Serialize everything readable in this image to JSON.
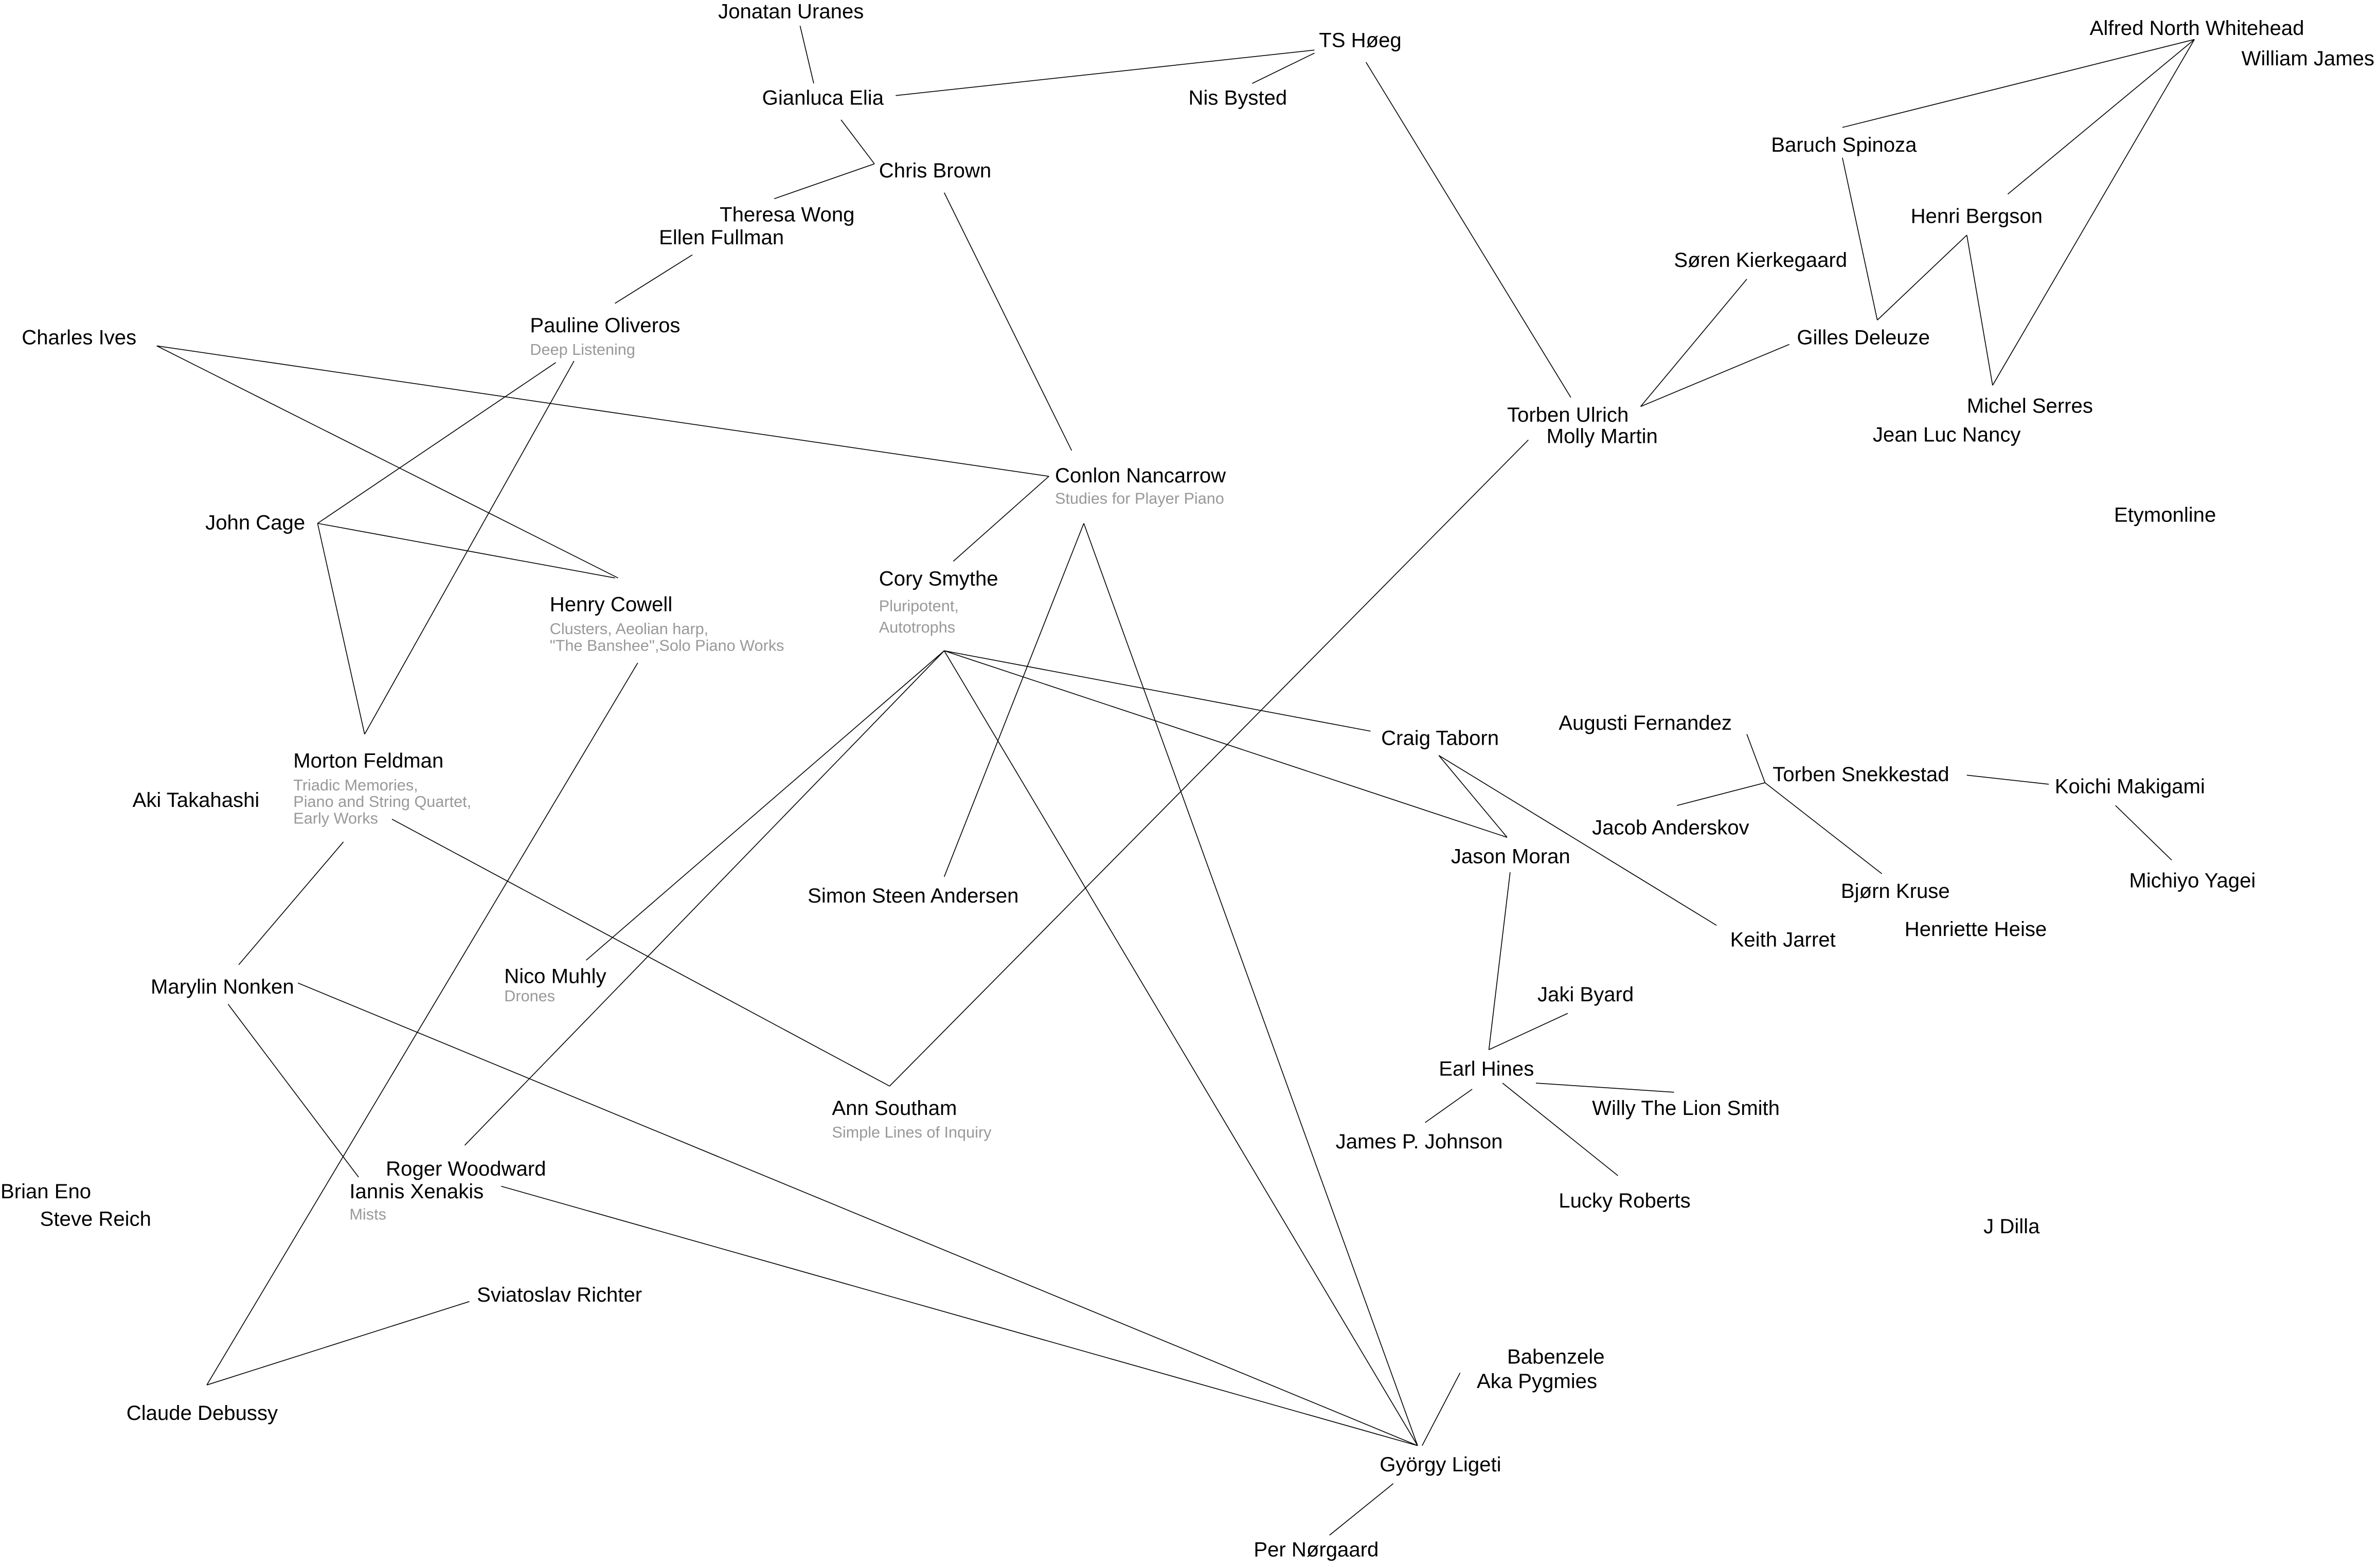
{
  "colors": {
    "background": "#ffffff",
    "label": "#000000",
    "subtitle": "#999999",
    "edge": "#000000"
  },
  "nodes": [
    {
      "name": "Jonatan Uranes"
    },
    {
      "name": "Gianluca Elia"
    },
    {
      "name": "TS Høeg"
    },
    {
      "name": "Nis Bysted"
    },
    {
      "name": "Chris Brown"
    },
    {
      "name": "Theresa Wong"
    },
    {
      "name": "Ellen Fullman"
    },
    {
      "name": "Pauline Oliveros",
      "subtitle": [
        "Deep Listening"
      ]
    },
    {
      "name": "Charles Ives"
    },
    {
      "name": "John Cage"
    },
    {
      "name": "Henry Cowell",
      "subtitle": [
        "Clusters, Aeolian harp,",
        "\"The Banshee\",Solo Piano Works"
      ]
    },
    {
      "name": "Conlon Nancarrow",
      "subtitle": [
        "Studies for Player Piano"
      ]
    },
    {
      "name": "Cory Smythe",
      "subtitle": [
        "Pluripotent,",
        "Autotrophs"
      ]
    },
    {
      "name": "Morton Feldman",
      "subtitle": [
        "Triadic Memories,",
        "Piano and String Quartet,",
        "Early Works"
      ]
    },
    {
      "name": "Aki Takahashi"
    },
    {
      "name": "Simon Steen Andersen"
    },
    {
      "name": "Nico Muhly",
      "subtitle": [
        "Drones"
      ]
    },
    {
      "name": "Marylin Nonken"
    },
    {
      "name": "Ann Southam",
      "subtitle": [
        "Simple Lines of Inquiry"
      ]
    },
    {
      "name": "Roger Woodward"
    },
    {
      "name": "Iannis Xenakis",
      "subtitle": [
        "Mists"
      ]
    },
    {
      "name": "Brian Eno"
    },
    {
      "name": "Steve Reich"
    },
    {
      "name": "Sviatoslav Richter"
    },
    {
      "name": "Claude Debussy"
    },
    {
      "name": "Babenzele"
    },
    {
      "name": "Aka Pygmies"
    },
    {
      "name": "György Ligeti"
    },
    {
      "name": "Per Nørgaard"
    },
    {
      "name": "Craig Taborn"
    },
    {
      "name": "Jason Moran"
    },
    {
      "name": "Keith Jarret"
    },
    {
      "name": "Jaki Byard"
    },
    {
      "name": "Earl Hines"
    },
    {
      "name": "Willy The Lion Smith"
    },
    {
      "name": "James P. Johnson"
    },
    {
      "name": "Lucky Roberts"
    },
    {
      "name": "Augusti Fernandez"
    },
    {
      "name": "Torben Snekkestad"
    },
    {
      "name": "Koichi Makigami"
    },
    {
      "name": "Jacob Anderskov"
    },
    {
      "name": "Bjørn Kruse"
    },
    {
      "name": "Henriette Heise"
    },
    {
      "name": "Michiyo Yagei"
    },
    {
      "name": "J Dilla"
    },
    {
      "name": "Etymonline"
    },
    {
      "name": "Torben Ulrich"
    },
    {
      "name": "Molly Martin"
    },
    {
      "name": "Søren Kierkegaard"
    },
    {
      "name": "Gilles Deleuze"
    },
    {
      "name": "Michel Serres"
    },
    {
      "name": "Jean Luc Nancy"
    },
    {
      "name": "Henri Bergson"
    },
    {
      "name": "Baruch Spinoza"
    },
    {
      "name": "Alfred North Whitehead"
    },
    {
      "name": "William James"
    }
  ],
  "edges": [
    [
      "Jonatan Uranes",
      "Gianluca Elia"
    ],
    [
      "Gianluca Elia",
      "TS Høeg"
    ],
    [
      "Nis Bysted",
      "TS Høeg"
    ],
    [
      "Gianluca Elia",
      "Chris Brown"
    ],
    [
      "Chris Brown",
      "Theresa Wong"
    ],
    [
      "Chris Brown",
      "Conlon Nancarrow"
    ],
    [
      "Ellen Fullman",
      "Pauline Oliveros"
    ],
    [
      "TS Høeg",
      "Torben Ulrich"
    ],
    [
      "Charles Ives",
      "Conlon Nancarrow"
    ],
    [
      "Charles Ives",
      "Henry Cowell"
    ],
    [
      "Pauline Oliveros",
      "John Cage"
    ],
    [
      "Pauline Oliveros",
      "Morton Feldman"
    ],
    [
      "John Cage",
      "Henry Cowell"
    ],
    [
      "John Cage",
      "Morton Feldman"
    ],
    [
      "Conlon Nancarrow",
      "Cory Smythe"
    ],
    [
      "Conlon Nancarrow",
      "Simon Steen Andersen"
    ],
    [
      "Conlon Nancarrow",
      "György Ligeti"
    ],
    [
      "Cory Smythe",
      "Craig Taborn"
    ],
    [
      "Cory Smythe",
      "Jason Moran"
    ],
    [
      "Cory Smythe",
      "Nico Muhly"
    ],
    [
      "Cory Smythe",
      "Roger Woodward"
    ],
    [
      "Cory Smythe",
      "György Ligeti"
    ],
    [
      "Henry Cowell",
      "Claude Debussy"
    ],
    [
      "Sviatoslav Richter",
      "Claude Debussy"
    ],
    [
      "Morton Feldman",
      "Ann Southam"
    ],
    [
      "Morton Feldman",
      "Marylin Nonken"
    ],
    [
      "Marylin Nonken",
      "György Ligeti"
    ],
    [
      "Marylin Nonken",
      "Iannis Xenakis"
    ],
    [
      "Iannis Xenakis",
      "György Ligeti"
    ],
    [
      "Ann Southam",
      "Molly Martin"
    ],
    [
      "Babenzele",
      "György Ligeti"
    ],
    [
      "Per Nørgaard",
      "György Ligeti"
    ],
    [
      "Craig Taborn",
      "Jason Moran"
    ],
    [
      "Craig Taborn",
      "Keith Jarret"
    ],
    [
      "Jason Moran",
      "Earl Hines"
    ],
    [
      "Jaki Byard",
      "Earl Hines"
    ],
    [
      "Earl Hines",
      "Willy The Lion Smith"
    ],
    [
      "Earl Hines",
      "James P. Johnson"
    ],
    [
      "Earl Hines",
      "Lucky Roberts"
    ],
    [
      "Augusti Fernandez",
      "Torben Snekkestad"
    ],
    [
      "Torben Snekkestad",
      "Jacob Anderskov"
    ],
    [
      "Torben Snekkestad",
      "Bjørn Kruse"
    ],
    [
      "Torben Snekkestad",
      "Koichi Makigami"
    ],
    [
      "Koichi Makigami",
      "Michiyo Yagei"
    ],
    [
      "Torben Ulrich",
      "Søren Kierkegaard"
    ],
    [
      "Torben Ulrich",
      "Gilles Deleuze"
    ],
    [
      "Gilles Deleuze",
      "Baruch Spinoza"
    ],
    [
      "Gilles Deleuze",
      "Henri Bergson"
    ],
    [
      "Henri Bergson",
      "Michel Serres"
    ],
    [
      "Michel Serres",
      "Alfred North Whitehead"
    ],
    [
      "Henri Bergson",
      "Alfred North Whitehead"
    ],
    [
      "Baruch Spinoza",
      "Alfred North Whitehead"
    ]
  ]
}
